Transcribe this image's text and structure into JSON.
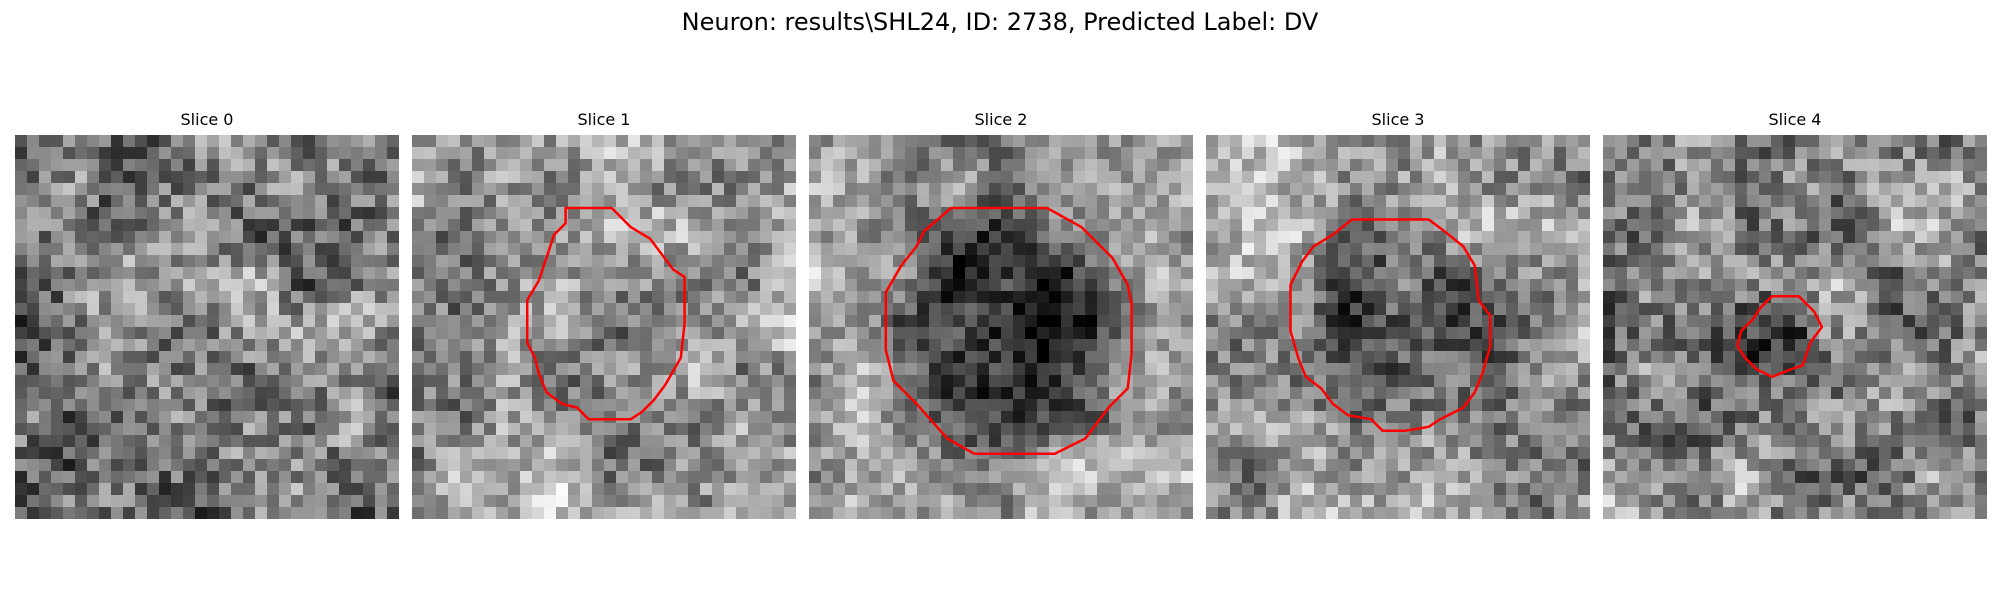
{
  "figure": {
    "title": "Neuron: results\\SHL24, ID: 2738, Predicted Label: DV"
  },
  "slices": [
    {
      "title": "Slice 0",
      "has_contour": false,
      "contour_color": "#ff0000",
      "blob": "mottled"
    },
    {
      "title": "Slice 1",
      "has_contour": true,
      "contour_color": "#ff0000",
      "blob": "faint"
    },
    {
      "title": "Slice 2",
      "has_contour": true,
      "contour_color": "#ff0000",
      "blob": "strong"
    },
    {
      "title": "Slice 3",
      "has_contour": true,
      "contour_color": "#ff0000",
      "blob": "medium"
    },
    {
      "title": "Slice 4",
      "has_contour": true,
      "contour_color": "#ff0000",
      "blob": "small"
    }
  ],
  "colors": {
    "background": "#ffffff",
    "contour": "#ff0000",
    "colormap": "gray"
  }
}
